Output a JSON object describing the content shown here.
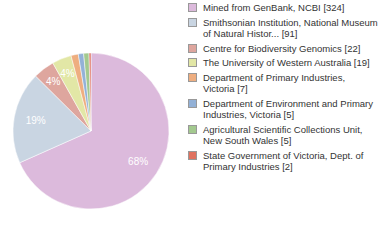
{
  "chart_data": {
    "type": "pie",
    "categories": [
      "Mined from GenBank, NCBI [324]",
      "Smithsonian Institution, National Museum of Natural Histor... [91]",
      "Centre for Biodiversity Genomics [22]",
      "The University of Western Australia [19]",
      "Department of Primary Industries, Victoria [7]",
      "Department of Environment and Primary Industries, Victoria [5]",
      "Agricultural Scientific Collections Unit, New South Wales [5]",
      "State Government of Victoria, Dept. of Primary Industries [2]"
    ],
    "values": [
      68,
      19,
      4.4,
      4,
      1.5,
      1.1,
      1.1,
      0.4
    ],
    "value_labels": [
      "68%",
      "19%",
      "4%",
      "4%",
      null,
      null,
      null,
      null
    ],
    "colors": [
      "#dcbadc",
      "#c9d5e2",
      "#dea69e",
      "#e2e7a6",
      "#eeae80",
      "#93b1d7",
      "#a3c98f",
      "#e07260"
    ],
    "data_labels": true,
    "legend": "right"
  }
}
